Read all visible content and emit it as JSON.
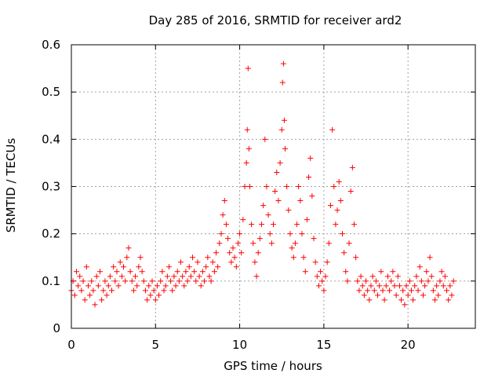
{
  "chart_data": {
    "type": "scatter",
    "title": "Day 285 of 2016, SRMTID for receiver ard2",
    "xlabel": "GPS time / hours",
    "ylabel": "SRMTID / TECUs",
    "xlim": [
      0,
      24
    ],
    "ylim": [
      0,
      0.6
    ],
    "xticks": [
      0,
      5,
      10,
      15,
      20
    ],
    "yticks": [
      0,
      0.1,
      0.2,
      0.3,
      0.4,
      0.5,
      0.6
    ],
    "xtick_labels": [
      "0",
      "5",
      "10",
      "15",
      "20"
    ],
    "ytick_labels": [
      "0",
      "0.1",
      "0.2",
      "0.3",
      "0.4",
      "0.5",
      "0.6"
    ],
    "grid": true,
    "marker": "plus",
    "color": "#ff0000",
    "series": [
      {
        "name": "SRMTID",
        "x": [
          0.0,
          0.1,
          0.2,
          0.3,
          0.4,
          0.5,
          0.6,
          0.7,
          0.8,
          0.9,
          1.0,
          1.1,
          1.2,
          1.3,
          1.4,
          1.5,
          1.6,
          1.7,
          1.8,
          1.9,
          2.0,
          2.1,
          2.2,
          2.3,
          2.4,
          2.5,
          2.6,
          2.7,
          2.8,
          2.9,
          3.0,
          3.1,
          3.2,
          3.3,
          3.4,
          3.5,
          3.6,
          3.7,
          3.8,
          3.9,
          4.0,
          4.1,
          4.2,
          4.3,
          4.4,
          4.5,
          4.6,
          4.7,
          4.8,
          4.9,
          5.0,
          5.1,
          5.2,
          5.3,
          5.4,
          5.5,
          5.6,
          5.7,
          5.8,
          5.9,
          6.0,
          6.1,
          6.2,
          6.3,
          6.4,
          6.5,
          6.6,
          6.7,
          6.8,
          6.9,
          7.0,
          7.1,
          7.2,
          7.3,
          7.4,
          7.5,
          7.6,
          7.7,
          7.8,
          7.9,
          8.0,
          8.1,
          8.2,
          8.3,
          8.4,
          8.5,
          8.6,
          8.7,
          8.8,
          8.9,
          9.0,
          9.1,
          9.2,
          9.3,
          9.4,
          9.5,
          9.6,
          9.7,
          9.8,
          9.9,
          10.0,
          10.1,
          10.2,
          10.3,
          10.4,
          10.45,
          10.5,
          10.55,
          10.6,
          10.7,
          10.8,
          10.9,
          11.0,
          11.1,
          11.2,
          11.3,
          11.4,
          11.5,
          11.6,
          11.7,
          11.8,
          11.9,
          12.0,
          12.1,
          12.2,
          12.3,
          12.4,
          12.5,
          12.55,
          12.6,
          12.65,
          12.7,
          12.8,
          12.9,
          13.0,
          13.1,
          13.2,
          13.3,
          13.4,
          13.5,
          13.6,
          13.7,
          13.8,
          13.9,
          14.0,
          14.1,
          14.2,
          14.3,
          14.4,
          14.5,
          14.6,
          14.7,
          14.8,
          14.9,
          15.0,
          15.1,
          15.2,
          15.3,
          15.4,
          15.5,
          15.6,
          15.7,
          15.8,
          15.9,
          16.0,
          16.1,
          16.2,
          16.3,
          16.4,
          16.5,
          16.6,
          16.7,
          16.8,
          16.9,
          17.0,
          17.1,
          17.2,
          17.3,
          17.4,
          17.5,
          17.6,
          17.7,
          17.8,
          17.9,
          18.0,
          18.1,
          18.2,
          18.3,
          18.4,
          18.5,
          18.6,
          18.7,
          18.8,
          18.9,
          19.0,
          19.1,
          19.2,
          19.3,
          19.4,
          19.5,
          19.6,
          19.7,
          19.8,
          19.9,
          20.0,
          20.1,
          20.2,
          20.3,
          20.4,
          20.5,
          20.6,
          20.7,
          20.8,
          20.9,
          21.0,
          21.1,
          21.2,
          21.3,
          21.4,
          21.5,
          21.6,
          21.7,
          21.8,
          21.9,
          22.0,
          22.1,
          22.2,
          22.3,
          22.4,
          22.5,
          22.6,
          22.7
        ],
        "y": [
          0.08,
          0.1,
          0.07,
          0.12,
          0.09,
          0.11,
          0.08,
          0.1,
          0.06,
          0.13,
          0.09,
          0.07,
          0.1,
          0.08,
          0.05,
          0.11,
          0.09,
          0.12,
          0.06,
          0.08,
          0.1,
          0.07,
          0.09,
          0.11,
          0.08,
          0.13,
          0.1,
          0.12,
          0.09,
          0.14,
          0.11,
          0.13,
          0.1,
          0.15,
          0.17,
          0.12,
          0.1,
          0.08,
          0.11,
          0.09,
          0.13,
          0.15,
          0.12,
          0.1,
          0.08,
          0.06,
          0.09,
          0.07,
          0.1,
          0.08,
          0.06,
          0.09,
          0.07,
          0.1,
          0.12,
          0.08,
          0.09,
          0.11,
          0.13,
          0.1,
          0.08,
          0.11,
          0.09,
          0.12,
          0.1,
          0.14,
          0.11,
          0.09,
          0.12,
          0.1,
          0.13,
          0.11,
          0.15,
          0.12,
          0.1,
          0.14,
          0.11,
          0.09,
          0.12,
          0.1,
          0.13,
          0.15,
          0.11,
          0.1,
          0.14,
          0.12,
          0.16,
          0.13,
          0.18,
          0.2,
          0.24,
          0.27,
          0.22,
          0.19,
          0.16,
          0.14,
          0.17,
          0.15,
          0.13,
          0.18,
          0.2,
          0.16,
          0.23,
          0.3,
          0.35,
          0.42,
          0.55,
          0.38,
          0.3,
          0.22,
          0.18,
          0.14,
          0.11,
          0.16,
          0.19,
          0.22,
          0.26,
          0.4,
          0.3,
          0.24,
          0.2,
          0.18,
          0.22,
          0.29,
          0.33,
          0.27,
          0.35,
          0.42,
          0.52,
          0.56,
          0.44,
          0.38,
          0.3,
          0.25,
          0.2,
          0.17,
          0.15,
          0.18,
          0.22,
          0.3,
          0.27,
          0.2,
          0.15,
          0.12,
          0.23,
          0.32,
          0.36,
          0.28,
          0.19,
          0.14,
          0.11,
          0.09,
          0.12,
          0.1,
          0.08,
          0.11,
          0.14,
          0.18,
          0.26,
          0.42,
          0.3,
          0.22,
          0.25,
          0.31,
          0.27,
          0.2,
          0.16,
          0.12,
          0.1,
          0.18,
          0.29,
          0.34,
          0.22,
          0.15,
          0.1,
          0.08,
          0.11,
          0.09,
          0.07,
          0.1,
          0.08,
          0.06,
          0.09,
          0.11,
          0.08,
          0.1,
          0.07,
          0.09,
          0.12,
          0.08,
          0.06,
          0.09,
          0.11,
          0.08,
          0.1,
          0.12,
          0.09,
          0.07,
          0.11,
          0.09,
          0.06,
          0.08,
          0.05,
          0.09,
          0.07,
          0.1,
          0.08,
          0.06,
          0.09,
          0.11,
          0.08,
          0.13,
          0.1,
          0.07,
          0.09,
          0.12,
          0.1,
          0.15,
          0.11,
          0.08,
          0.06,
          0.09,
          0.07,
          0.1,
          0.12,
          0.09,
          0.11,
          0.08,
          0.06,
          0.09,
          0.07,
          0.1
        ]
      }
    ]
  }
}
